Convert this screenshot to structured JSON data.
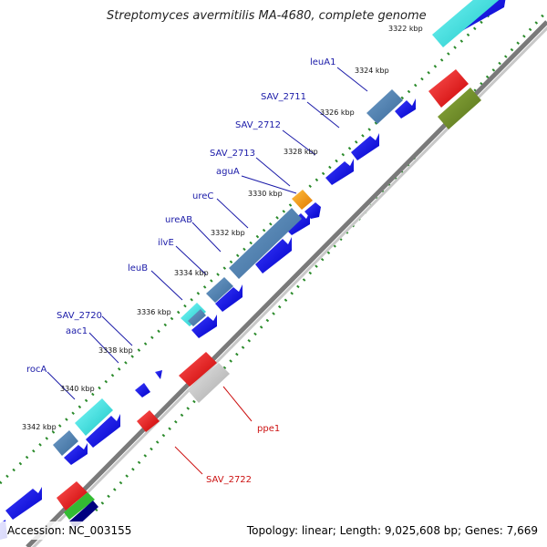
{
  "title": "Streptomyces avermitilis MA-4680, complete genome",
  "footer": {
    "accession": "Accession: NC_003155",
    "summary": "Topology: linear; Length: 9,025,608 bp; Genes: 7,669"
  },
  "ticks": [
    {
      "label": "3322 kbp"
    },
    {
      "label": "3324 kbp"
    },
    {
      "label": "3326 kbp"
    },
    {
      "label": "3328 kbp"
    },
    {
      "label": "3330 kbp"
    },
    {
      "label": "3332 kbp"
    },
    {
      "label": "3334 kbp"
    },
    {
      "label": "3336 kbp"
    },
    {
      "label": "3338 kbp"
    },
    {
      "label": "3340 kbp"
    },
    {
      "label": "3342 kbp"
    }
  ],
  "gene_labels": [
    {
      "name": "leuA1"
    },
    {
      "name": "SAV_2711"
    },
    {
      "name": "SAV_2712"
    },
    {
      "name": "SAV_2713"
    },
    {
      "name": "aguA"
    },
    {
      "name": "ureC"
    },
    {
      "name": "ureAB"
    },
    {
      "name": "ilvE"
    },
    {
      "name": "leuB"
    },
    {
      "name": "SAV_2720"
    },
    {
      "name": "aac1"
    },
    {
      "name": "rocA"
    },
    {
      "name": "ppe1"
    },
    {
      "name": "SAV_2722"
    }
  ],
  "colors": {
    "cds": "#0000ee",
    "blast_high": "#4a7fb5",
    "cyan": "#22dddd",
    "orange": "#ff9900",
    "red": "#ee0000",
    "olive": "#6b8e23",
    "gray": "#bbbbbb",
    "green": "#33bb33",
    "navy": "#000080",
    "backbone": "#888888",
    "dots": "#2a8a2a"
  }
}
